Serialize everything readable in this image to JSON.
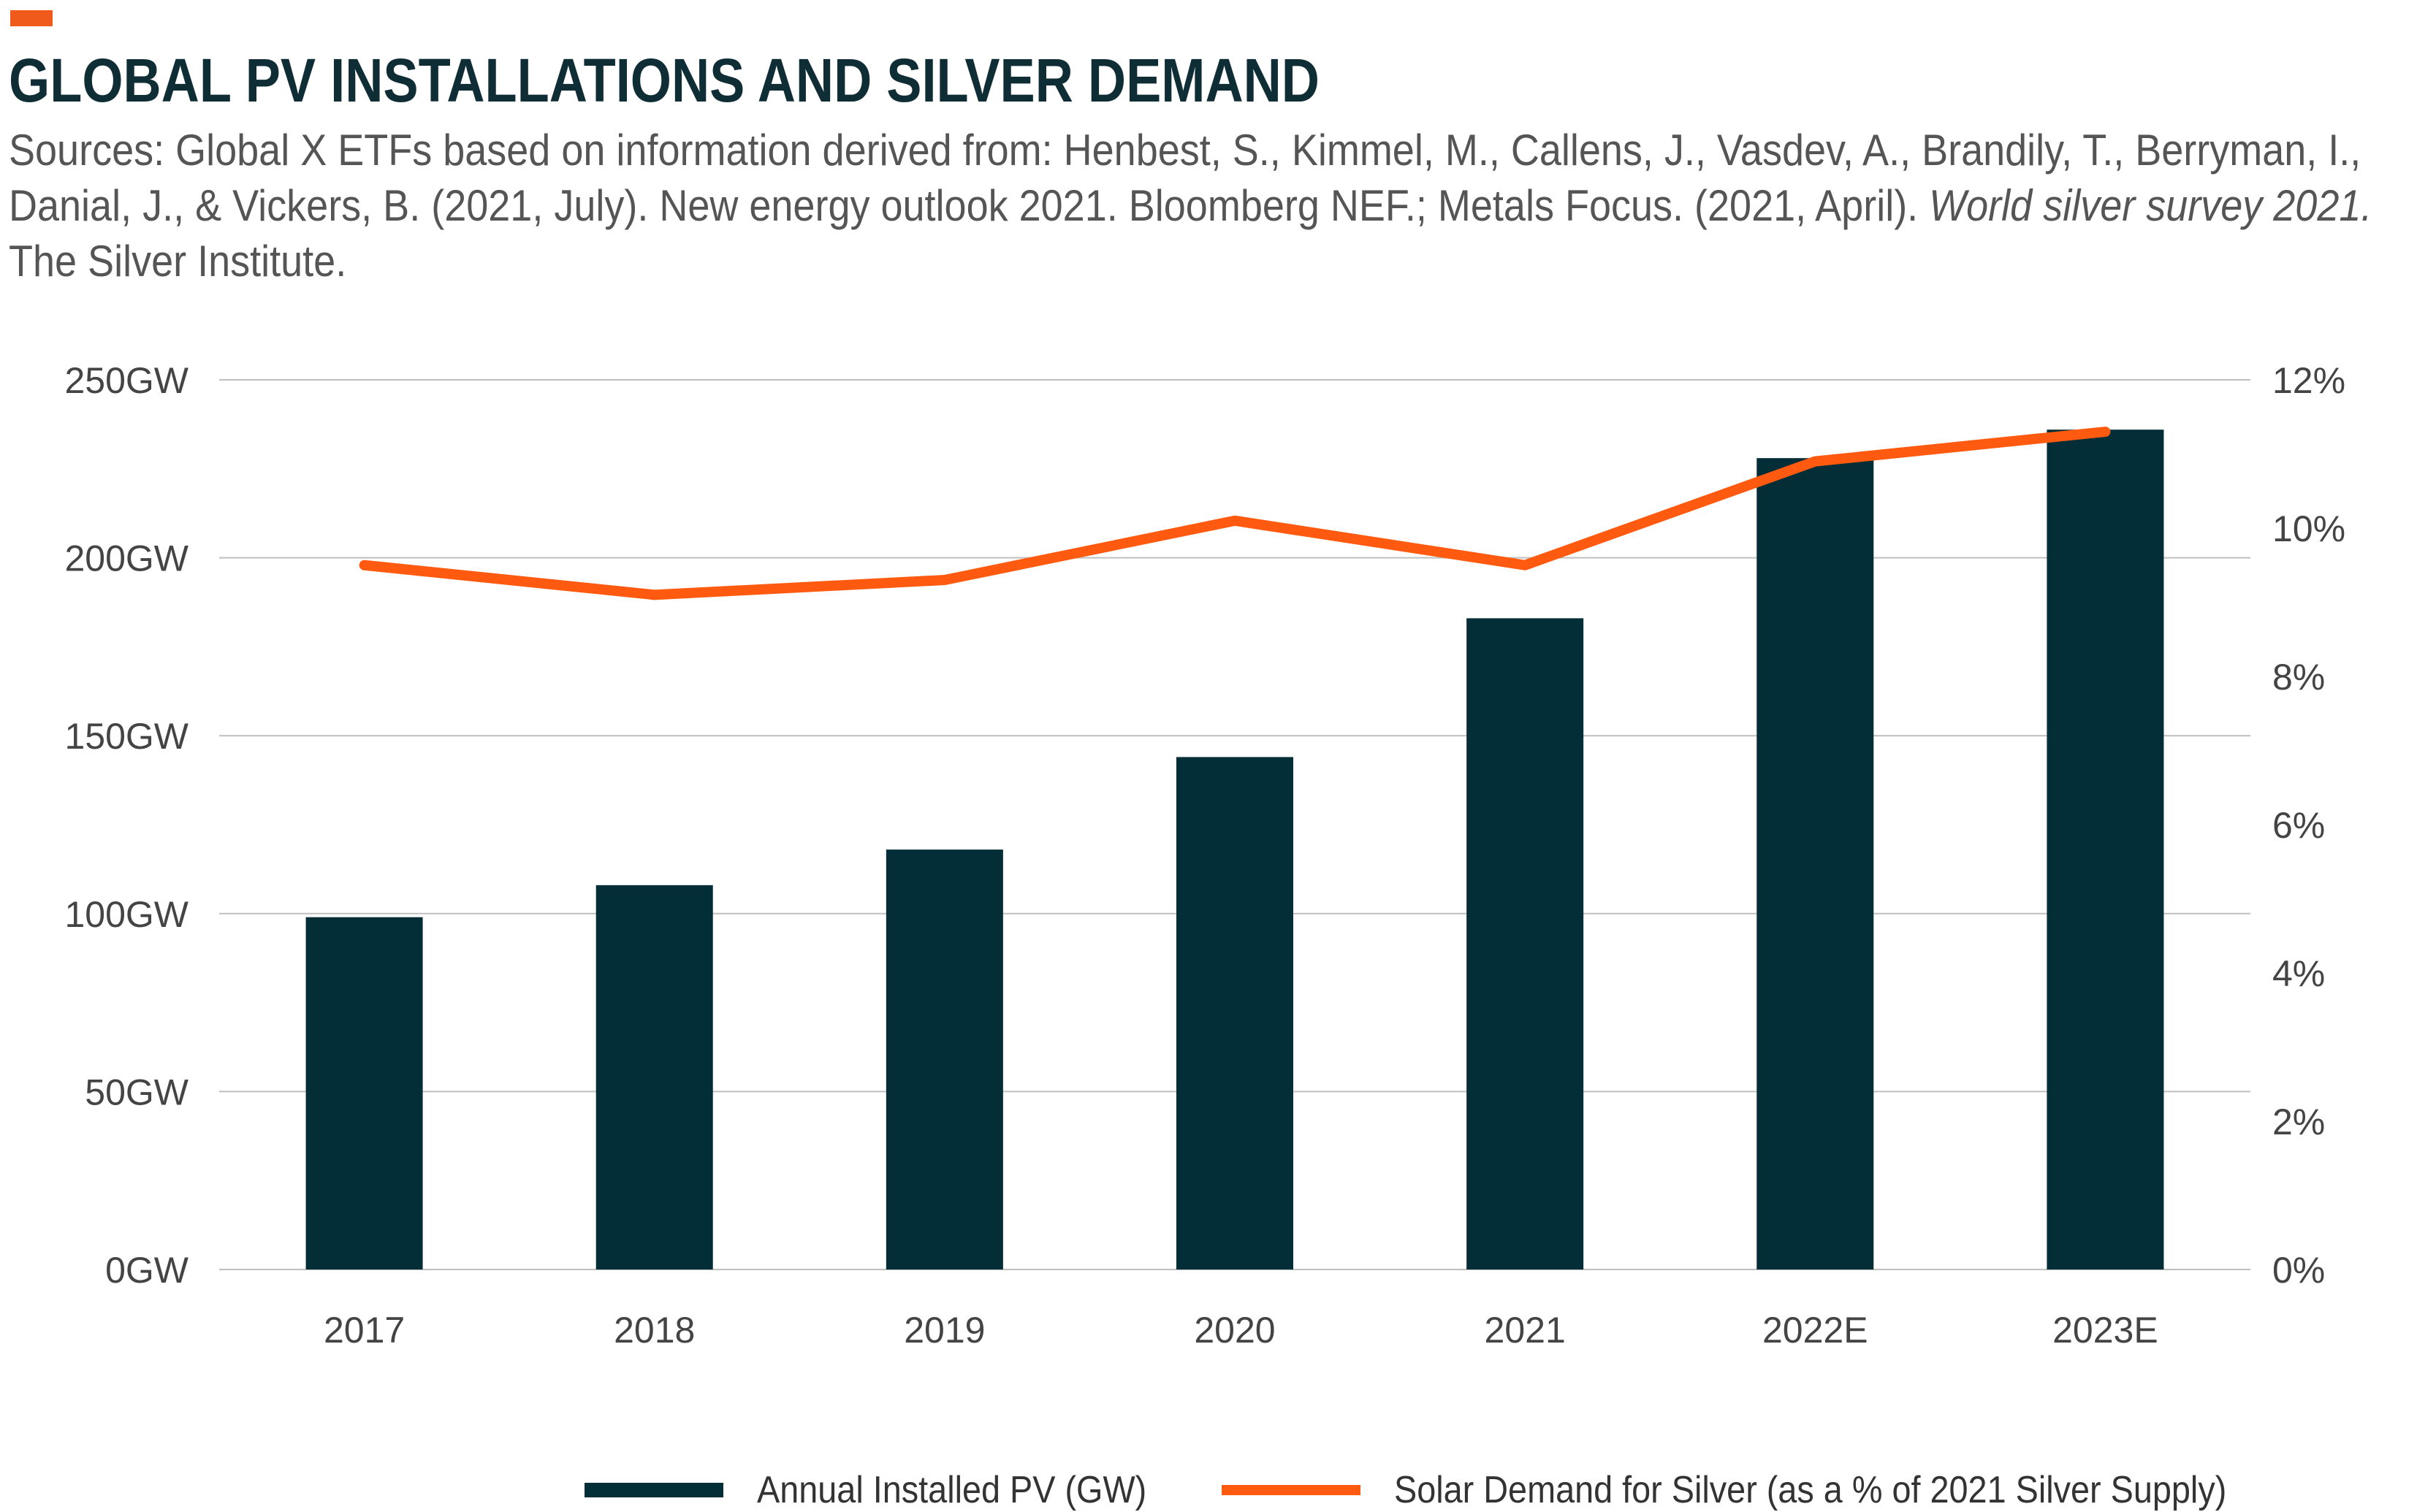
{
  "header": {
    "title": "GLOBAL PV INSTALLATIONS AND SILVER DEMAND",
    "sources_pre": "Sources: Global X ETFs based on information derived from: Henbest, S., Kimmel, M., Callens, J., Vasdev, A., Brandily, T., Berryman, I., Danial, J., & Vickers, B. (2021, July). New energy outlook 2021. Bloomberg NEF.; Metals Focus. (2021, April). ",
    "sources_italic": "World silver survey 2021.",
    "sources_post": " The Silver Institute."
  },
  "colors": {
    "accent": "#f05a1a",
    "bar": "#032d37",
    "line": "#ff5a0f",
    "title": "#0f2d35",
    "grid": "#bfbfbf"
  },
  "chart_data": {
    "type": "bar",
    "categories": [
      "2017",
      "2018",
      "2019",
      "2020",
      "2021",
      "2022E",
      "2023E"
    ],
    "series": [
      {
        "name": "Annual Installed PV (GW)",
        "type": "bar",
        "axis": "left",
        "values": [
          99,
          108,
          118,
          144,
          183,
          228,
          236
        ]
      },
      {
        "name": "Solar Demand for Silver (as a % of 2021 Silver Supply)",
        "type": "line",
        "axis": "right",
        "values": [
          9.5,
          9.1,
          9.3,
          10.1,
          9.5,
          10.9,
          11.3
        ]
      }
    ],
    "y_left": {
      "ylim": [
        0,
        250
      ],
      "ticks": [
        "0GW",
        "50GW",
        "100GW",
        "150GW",
        "200GW",
        "250GW"
      ],
      "tick_values": [
        0,
        50,
        100,
        150,
        200,
        250
      ]
    },
    "y_right": {
      "ylim": [
        0,
        12
      ],
      "ticks": [
        "0%",
        "2%",
        "4%",
        "6%",
        "8%",
        "10%",
        "12%"
      ],
      "tick_values": [
        0,
        2,
        4,
        6,
        8,
        10,
        12
      ]
    },
    "grid": true,
    "legend_position": "bottom"
  }
}
